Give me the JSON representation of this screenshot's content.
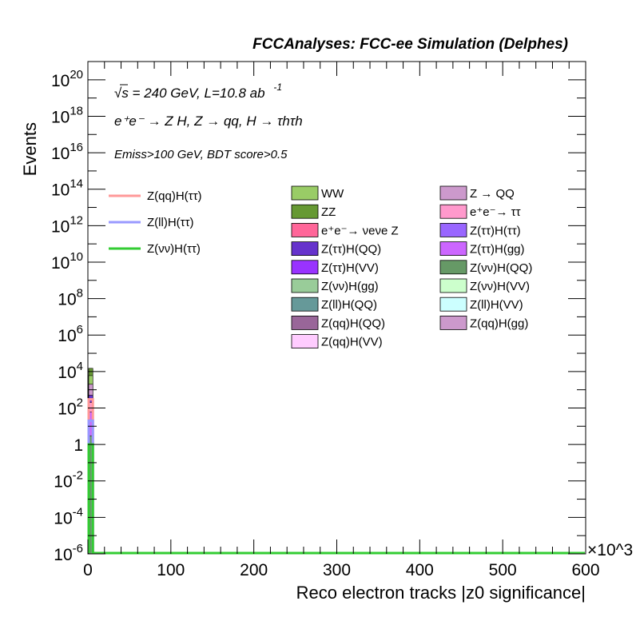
{
  "chart_data": {
    "type": "histogram",
    "title": "FCCAnalyses: FCC-ee Simulation (Delphes)",
    "xlabel": "Reco electron tracks |z0 significance|",
    "ylabel": "Events",
    "x_multiplier": "×10^3",
    "xlim": [
      0,
      600000
    ],
    "ylim": [
      1e-06,
      1e+21
    ],
    "y_scale": "log",
    "x_ticks": [
      "0",
      "100",
      "200",
      "300",
      "400",
      "500",
      "600"
    ],
    "y_ticks": [
      {
        "base": "10",
        "exp": "20",
        "value": 1e+20
      },
      {
        "base": "10",
        "exp": "18",
        "value": 1e+18
      },
      {
        "base": "10",
        "exp": "16",
        "value": 1e+16
      },
      {
        "base": "10",
        "exp": "14",
        "value": 100000000000000.0
      },
      {
        "base": "10",
        "exp": "12",
        "value": 1000000000000.0
      },
      {
        "base": "10",
        "exp": "10",
        "value": 10000000000.0
      },
      {
        "base": "10",
        "exp": "8",
        "value": 100000000.0
      },
      {
        "base": "10",
        "exp": "6",
        "value": 1000000.0
      },
      {
        "base": "10",
        "exp": "4",
        "value": 10000.0
      },
      {
        "base": "10",
        "exp": "2",
        "value": 100.0
      },
      {
        "base": "1",
        "exp": "",
        "value": 1
      },
      {
        "base": "10",
        "exp": "-2",
        "value": 0.01
      },
      {
        "base": "10",
        "exp": "-4",
        "value": 0.0001
      },
      {
        "base": "10",
        "exp": "-6",
        "value": 1e-06
      }
    ],
    "annotations": {
      "energy": "√s = 240 GeV, L=10.8 ab",
      "energy_exp": "-1",
      "process": "e⁺e⁻ → Z H, Z → qq, H → τhτh",
      "selection": "Emiss>100 GeV, BDT score>0.5"
    },
    "legend_lines": [
      {
        "name": "Z(qq)H(ττ)",
        "color": "#ff9999"
      },
      {
        "name": "Z(ll)H(ττ)",
        "color": "#9999ff"
      },
      {
        "name": "Z(νν)H(ττ)",
        "color": "#33cc33"
      }
    ],
    "legend_fills": [
      {
        "name": "WW",
        "color": "#99cc66"
      },
      {
        "name": "ZZ",
        "color": "#669933"
      },
      {
        "name": "e⁺e⁻→ νeνe Z",
        "color": "#ff6699"
      },
      {
        "name": "Z(ττ)H(QQ)",
        "color": "#6633cc"
      },
      {
        "name": "Z(ττ)H(VV)",
        "color": "#9933ff"
      },
      {
        "name": "Z(νν)H(gg)",
        "color": "#99cc99"
      },
      {
        "name": "Z(ll)H(QQ)",
        "color": "#669999"
      },
      {
        "name": "Z(qq)H(QQ)",
        "color": "#996699"
      },
      {
        "name": "Z(qq)H(VV)",
        "color": "#ffccff"
      },
      {
        "name": "Z → QQ",
        "color": "#cc99cc"
      },
      {
        "name": "e⁺e⁻→ ττ",
        "color": "#ff99cc"
      },
      {
        "name": "Z(ττ)H(ττ)",
        "color": "#9966ff"
      },
      {
        "name": "Z(ττ)H(gg)",
        "color": "#cc66ff"
      },
      {
        "name": "Z(νν)H(QQ)",
        "color": "#669966"
      },
      {
        "name": "Z(νν)H(VV)",
        "color": "#ccffcc"
      },
      {
        "name": "Z(ll)H(VV)",
        "color": "#ccffff"
      },
      {
        "name": "Z(qq)H(gg)",
        "color": "#cc99cc"
      }
    ],
    "stack_first_bin": [
      {
        "name": "ZZ",
        "color": "#669933",
        "y_top": 15000
      },
      {
        "name": "WW",
        "color": "#99cc66",
        "y_top": 6000
      },
      {
        "name": "Z → QQ",
        "color": "#cc99cc",
        "y_top": 2000
      },
      {
        "name": "Z(ττ)H(QQ)",
        "color": "#6633cc",
        "y_top": 500
      },
      {
        "name": "e⁺e⁻→ ττ",
        "color": "#ff99cc",
        "y_top": 200
      },
      {
        "name": "Z(ττ)H(gg)",
        "color": "#cc66ff",
        "y_top": 60
      },
      {
        "name": "Z(νν)H(QQ)",
        "color": "#669966",
        "y_top": 3
      }
    ],
    "signal_first_bin": [
      {
        "name": "Z(qq)H(ττ)",
        "color": "#ff9999",
        "y": 300
      },
      {
        "name": "Z(ll)H(ττ)",
        "color": "#9999ff",
        "y": 20
      },
      {
        "name": "Z(νν)H(ττ)",
        "color": "#33cc33",
        "y": 1
      }
    ],
    "first_bin_x": [
      0,
      6000
    ]
  }
}
